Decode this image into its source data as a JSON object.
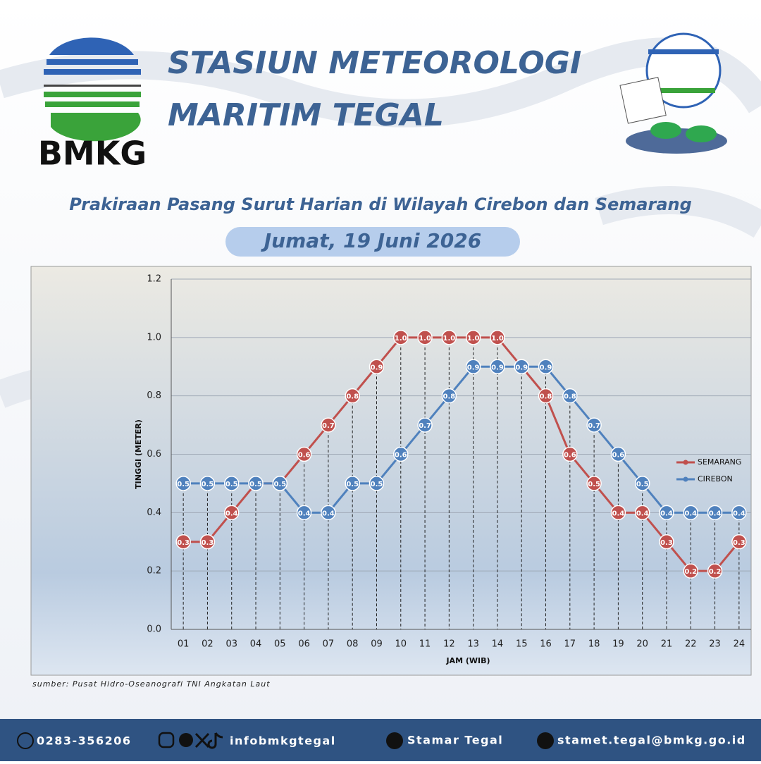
{
  "header": {
    "logo_text": "BMKG",
    "title_line1": "STASIUN METEOROLOGI",
    "title_line2": "MARITIM TEGAL",
    "subtitle": "Prakiraan Pasang Surut Harian di Wilayah Cirebon dan Semarang",
    "date": "Jumat, 19 Juni 2026"
  },
  "chart_data": {
    "type": "line",
    "x_label": "JAM (WIB)",
    "y_label": "TINGGI (METER)",
    "categories": [
      "01",
      "02",
      "03",
      "04",
      "05",
      "06",
      "07",
      "08",
      "09",
      "10",
      "11",
      "12",
      "13",
      "14",
      "15",
      "16",
      "17",
      "18",
      "19",
      "20",
      "21",
      "22",
      "23",
      "24"
    ],
    "series": [
      {
        "name": "SEMARANG",
        "color": "#c0504d",
        "values": [
          0.3,
          0.3,
          0.4,
          0.5,
          0.5,
          0.6,
          0.7,
          0.8,
          0.9,
          1,
          1,
          1,
          1,
          1,
          0.9,
          0.8,
          0.6,
          0.5,
          0.4,
          0.4,
          0.3,
          0.2,
          0.2,
          0.3
        ],
        "value_labels": [
          "0.3",
          "0.3",
          "0.4",
          "0.5",
          "0.5",
          "0.6",
          "0.7",
          "0.8",
          "0.9",
          "1.0",
          "1.0",
          "1.0",
          "1.0",
          "1.0",
          "0.9",
          "0.8",
          "0.6",
          "0.5",
          "0.4",
          "0.4",
          "0.3",
          "0.2",
          "0.2",
          "0.3"
        ]
      },
      {
        "name": "CIREBON",
        "color": "#4f81bd",
        "values": [
          0.5,
          0.5,
          0.5,
          0.5,
          0.5,
          0.4,
          0.4,
          0.5,
          0.5,
          0.6,
          0.7,
          0.8,
          0.9,
          0.9,
          0.9,
          0.9,
          0.8,
          0.7,
          0.6,
          0.5,
          0.4,
          0.4,
          0.4,
          0.4
        ],
        "value_labels": [
          "0.5",
          "0.5",
          "0.5",
          "0.5",
          "0.5",
          "0.4",
          "0.4",
          "0.5",
          "0.5",
          "0.6",
          "0.7",
          "0.8",
          "0.9",
          "0.9",
          "0.9",
          "0.9",
          "0.8",
          "0.7",
          "0.6",
          "0.5",
          "0.4",
          "0.4",
          "0.4",
          "0.4"
        ]
      }
    ],
    "ylim": [
      0,
      1.2
    ],
    "yticks": [
      {
        "value": 0,
        "label": "0.0"
      },
      0.2,
      0.4,
      0.6,
      0.8,
      {
        "value": 1,
        "label": "1.0"
      },
      1.2
    ],
    "grid": true,
    "legend": "right",
    "source": "sumber: Pusat Hidro-Oseanografi TNI Angkatan Laut"
  },
  "footer": {
    "phone": "0283-356206",
    "social": "infobmkgtegal",
    "youtube": "Stamar Tegal",
    "email": "stamet.tegal@bmkg.go.id"
  }
}
